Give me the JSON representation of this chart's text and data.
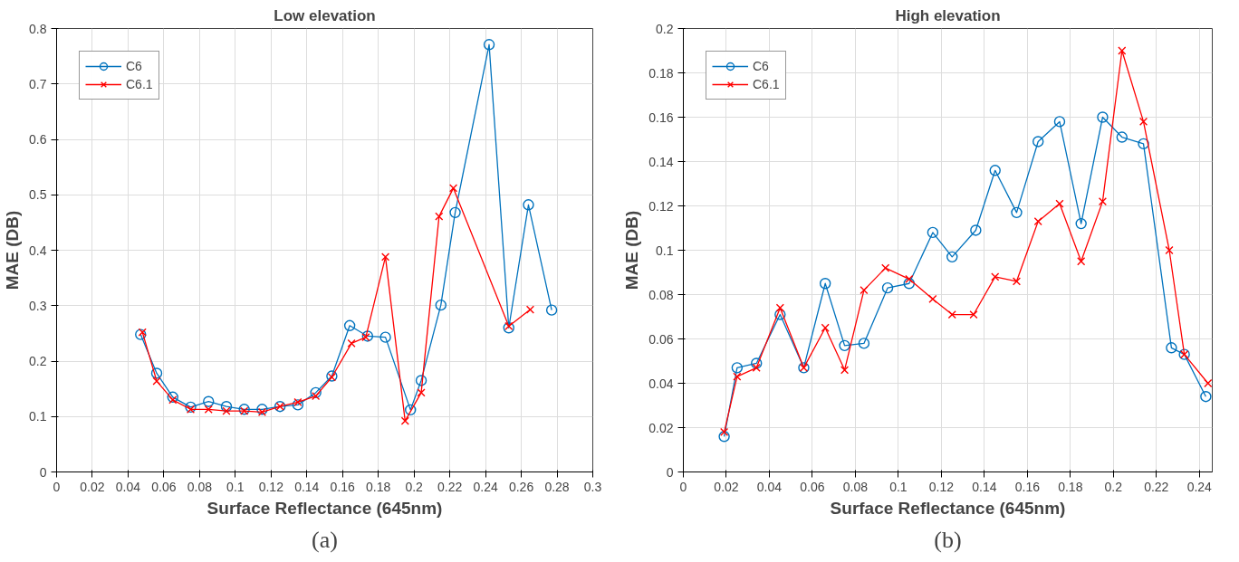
{
  "chart_data": [
    {
      "type": "line",
      "title": "Low elevation",
      "xlabel": "Surface Reflectance (645nm)",
      "ylabel": "MAE (DB)",
      "xlim": [
        0,
        0.3
      ],
      "ylim": [
        0,
        0.8
      ],
      "xticks": [
        0,
        0.02,
        0.04,
        0.06,
        0.08,
        0.1,
        0.12,
        0.14,
        0.16,
        0.18,
        0.2,
        0.22,
        0.24,
        0.26,
        0.28,
        0.3
      ],
      "yticks": [
        0,
        0.1,
        0.2,
        0.3,
        0.4,
        0.5,
        0.6,
        0.7,
        0.8
      ],
      "grid": true,
      "legend": "top left",
      "annotations": [
        "(a)"
      ],
      "series": [
        {
          "name": "C6",
          "color": "#0072bd",
          "marker": "circle",
          "x": [
            0.047,
            0.056,
            0.065,
            0.075,
            0.085,
            0.095,
            0.105,
            0.115,
            0.125,
            0.135,
            0.145,
            0.154,
            0.164,
            0.174,
            0.184,
            0.198,
            0.204,
            0.215,
            0.223,
            0.242,
            0.253,
            0.264,
            0.277
          ],
          "values": [
            0.248,
            0.178,
            0.135,
            0.117,
            0.127,
            0.118,
            0.113,
            0.113,
            0.118,
            0.121,
            0.143,
            0.173,
            0.264,
            0.245,
            0.243,
            0.112,
            0.165,
            0.301,
            0.468,
            0.771,
            0.26,
            0.482,
            0.292
          ]
        },
        {
          "name": "C6.1",
          "color": "#ff0000",
          "marker": "cross",
          "x": [
            0.048,
            0.056,
            0.065,
            0.075,
            0.085,
            0.095,
            0.105,
            0.115,
            0.125,
            0.135,
            0.145,
            0.154,
            0.165,
            0.173,
            0.184,
            0.195,
            0.204,
            0.214,
            0.222,
            0.253,
            0.265
          ],
          "values": [
            0.252,
            0.164,
            0.13,
            0.113,
            0.113,
            0.11,
            0.11,
            0.108,
            0.118,
            0.126,
            0.137,
            0.171,
            0.232,
            0.243,
            0.388,
            0.092,
            0.143,
            0.461,
            0.512,
            0.263,
            0.293
          ]
        }
      ]
    },
    {
      "type": "line",
      "title": "High elevation",
      "xlabel": "Surface Reflectance (645nm)",
      "ylabel": "MAE (DB)",
      "xlim": [
        0,
        0.246
      ],
      "ylim": [
        0,
        0.2
      ],
      "xticks": [
        0,
        0.02,
        0.04,
        0.06,
        0.08,
        0.1,
        0.12,
        0.14,
        0.16,
        0.18,
        0.2,
        0.22,
        0.24
      ],
      "yticks": [
        0,
        0.02,
        0.04,
        0.06,
        0.08,
        0.1,
        0.12,
        0.14,
        0.16,
        0.18,
        0.2
      ],
      "grid": true,
      "legend": "top left",
      "annotations": [
        "(b)"
      ],
      "series": [
        {
          "name": "C6",
          "color": "#0072bd",
          "marker": "circle",
          "x": [
            0.019,
            0.025,
            0.034,
            0.045,
            0.056,
            0.066,
            0.075,
            0.084,
            0.095,
            0.105,
            0.116,
            0.125,
            0.136,
            0.145,
            0.155,
            0.165,
            0.175,
            0.185,
            0.195,
            0.204,
            0.214,
            0.227,
            0.233,
            0.243
          ],
          "values": [
            0.016,
            0.047,
            0.049,
            0.071,
            0.047,
            0.085,
            0.057,
            0.058,
            0.083,
            0.085,
            0.108,
            0.097,
            0.109,
            0.136,
            0.117,
            0.149,
            0.158,
            0.112,
            0.16,
            0.151,
            0.148,
            0.056,
            0.053,
            0.034
          ]
        },
        {
          "name": "C6.1",
          "color": "#ff0000",
          "marker": "cross",
          "x": [
            0.019,
            0.025,
            0.034,
            0.045,
            0.056,
            0.066,
            0.075,
            0.084,
            0.094,
            0.105,
            0.116,
            0.125,
            0.135,
            0.145,
            0.155,
            0.165,
            0.175,
            0.185,
            0.195,
            0.204,
            0.214,
            0.226,
            0.233,
            0.244
          ],
          "values": [
            0.018,
            0.043,
            0.047,
            0.074,
            0.047,
            0.065,
            0.046,
            0.082,
            0.092,
            0.087,
            0.078,
            0.071,
            0.071,
            0.088,
            0.086,
            0.113,
            0.121,
            0.095,
            0.122,
            0.19,
            0.158,
            0.1,
            0.053,
            0.04
          ]
        }
      ]
    }
  ]
}
